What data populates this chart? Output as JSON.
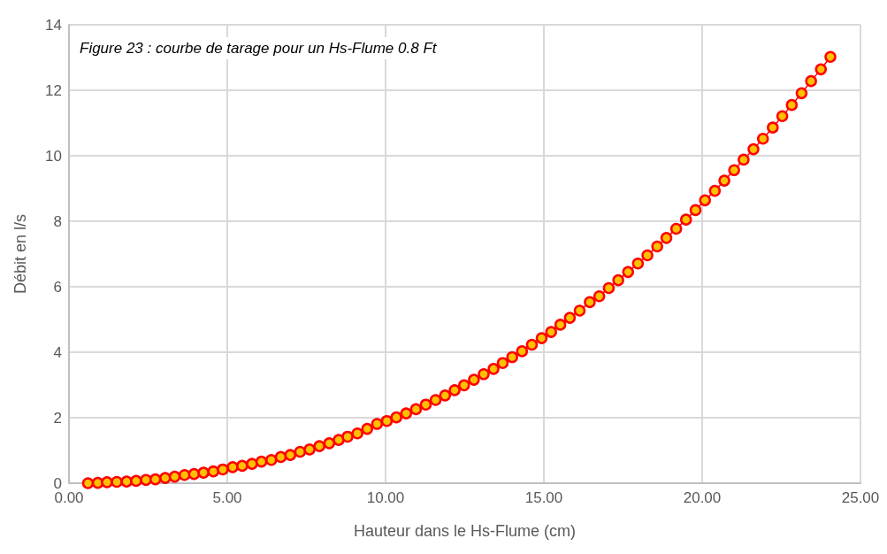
{
  "chart_data": {
    "type": "line",
    "title": "Figure 23 : courbe de tarage pour un Hs-Flume 0.8 Ft",
    "xlabel": "Hauteur dans le Hs-Flume (cm)",
    "ylabel": "Débit en l/s",
    "x": [
      0.6,
      0.91,
      1.2,
      1.51,
      1.82,
      2.12,
      2.43,
      2.73,
      3.04,
      3.34,
      3.65,
      3.95,
      4.25,
      4.56,
      4.86,
      5.17,
      5.47,
      5.78,
      6.08,
      6.39,
      6.69,
      6.99,
      7.3,
      7.6,
      7.91,
      8.22,
      8.52,
      8.8,
      9.11,
      9.42,
      9.73,
      10.04,
      10.34,
      10.65,
      10.96,
      11.27,
      11.58,
      11.88,
      12.18,
      12.48,
      12.79,
      13.1,
      13.41,
      13.7,
      14.0,
      14.31,
      14.62,
      14.93,
      15.23,
      15.52,
      15.82,
      16.13,
      16.45,
      16.75,
      17.05,
      17.35,
      17.66,
      17.97,
      18.27,
      18.58,
      18.87,
      19.18,
      19.49,
      19.79,
      20.09,
      20.4,
      20.7,
      21.01,
      21.31,
      21.62,
      21.92,
      22.23,
      22.53,
      22.83,
      23.14,
      23.44,
      23.75,
      24.05
    ],
    "series": [
      {
        "color": "#ff0000",
        "values": [
          0.0,
          0.01,
          0.03,
          0.04,
          0.05,
          0.07,
          0.1,
          0.12,
          0.16,
          0.2,
          0.25,
          0.28,
          0.32,
          0.36,
          0.42,
          0.49,
          0.53,
          0.59,
          0.66,
          0.71,
          0.8,
          0.86,
          0.96,
          1.03,
          1.13,
          1.22,
          1.32,
          1.42,
          1.52,
          1.66,
          1.81,
          1.9,
          2.01,
          2.13,
          2.26,
          2.4,
          2.54,
          2.68,
          2.84,
          2.99,
          3.16,
          3.33,
          3.49,
          3.67,
          3.85,
          4.03,
          4.23,
          4.43,
          4.62,
          4.84,
          5.05,
          5.27,
          5.53,
          5.71,
          5.96,
          6.2,
          6.45,
          6.71,
          6.96,
          7.23,
          7.49,
          7.77,
          8.05,
          8.34,
          8.64,
          8.93,
          9.24,
          9.56,
          9.88,
          10.2,
          10.52,
          10.86,
          11.21,
          11.55,
          11.91,
          12.28,
          12.64,
          13.02
        ]
      }
    ],
    "xlim": [
      0,
      25
    ],
    "xticks": [
      {
        "value": 0,
        "label": "0.00"
      },
      {
        "value": 5,
        "label": "5.00"
      },
      {
        "value": 10,
        "label": "10.00"
      },
      {
        "value": 15,
        "label": "15.00"
      },
      {
        "value": 20,
        "label": "20.00"
      },
      {
        "value": 25,
        "label": "25.00"
      }
    ],
    "ylim": [
      0,
      14
    ],
    "yticks": [
      0,
      2,
      4,
      6,
      8,
      10,
      12,
      14
    ],
    "grid": true,
    "marker": "circle",
    "line_style": "solid"
  }
}
